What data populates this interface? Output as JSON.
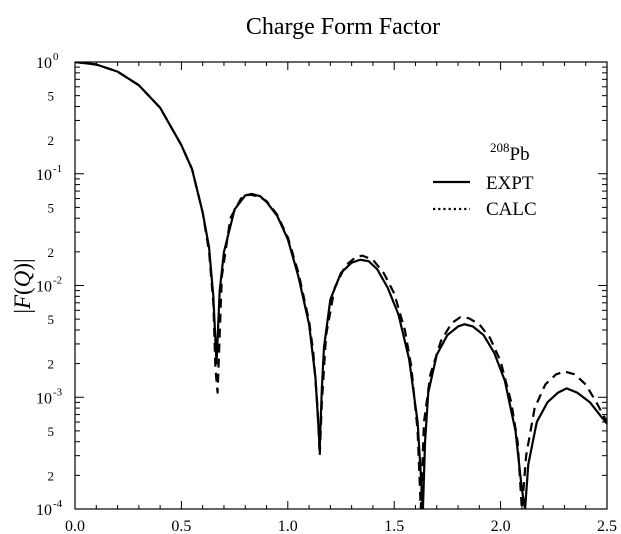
{
  "chart_data": {
    "type": "line",
    "title": "Charge Form Factor",
    "xlabel": "",
    "ylabel": "|F(Q)|",
    "x_scale": "linear",
    "y_scale": "log",
    "xlim": [
      0.0,
      2.5
    ],
    "ylim": [
      0.0001,
      1
    ],
    "grid": false,
    "legend": {
      "placement": "top-right",
      "heading_mass": "208",
      "heading_element": "Pb"
    },
    "x_ticks": [
      {
        "value": 0.0,
        "label": "0.0"
      },
      {
        "value": 0.5,
        "label": "0.5"
      },
      {
        "value": 1.0,
        "label": "1.0"
      },
      {
        "value": 1.5,
        "label": "1.5"
      },
      {
        "value": 2.0,
        "label": "2.0"
      },
      {
        "value": 2.5,
        "label": "2.5"
      }
    ],
    "y_major_ticks": [
      {
        "value": 1,
        "mantissa": "10",
        "exponent": "0"
      },
      {
        "value": 0.1,
        "mantissa": "10",
        "exponent": "-1"
      },
      {
        "value": 0.01,
        "mantissa": "10",
        "exponent": "-2"
      },
      {
        "value": 0.001,
        "mantissa": "10",
        "exponent": "-3"
      },
      {
        "value": 0.0001,
        "mantissa": "10",
        "exponent": "-4"
      }
    ],
    "y_minor_labels": [
      {
        "value": 0.5,
        "label": "5"
      },
      {
        "value": 0.2,
        "label": "2"
      },
      {
        "value": 0.05,
        "label": "5"
      },
      {
        "value": 0.02,
        "label": "2"
      },
      {
        "value": 0.005,
        "label": "5"
      },
      {
        "value": 0.002,
        "label": "2"
      },
      {
        "value": 0.0005,
        "label": "5"
      },
      {
        "value": 0.0002,
        "label": "2"
      }
    ],
    "series": [
      {
        "name": "EXPT",
        "style": "solid",
        "color": "#000000",
        "x": [
          0.0,
          0.1,
          0.2,
          0.3,
          0.4,
          0.5,
          0.55,
          0.6,
          0.63,
          0.65,
          0.665,
          0.68,
          0.7,
          0.75,
          0.8,
          0.83,
          0.87,
          0.9,
          0.95,
          1.0,
          1.05,
          1.1,
          1.13,
          1.15,
          1.16,
          1.17,
          1.2,
          1.25,
          1.3,
          1.34,
          1.38,
          1.42,
          1.47,
          1.52,
          1.57,
          1.61,
          1.635,
          1.645,
          1.66,
          1.7,
          1.75,
          1.8,
          1.83,
          1.87,
          1.92,
          1.97,
          2.02,
          2.07,
          2.1,
          2.115,
          2.13,
          2.17,
          2.22,
          2.27,
          2.31,
          2.36,
          2.42,
          2.47,
          2.5
        ],
        "y": [
          1.0,
          0.95,
          0.82,
          0.62,
          0.39,
          0.18,
          0.11,
          0.045,
          0.022,
          0.008,
          0.002,
          0.009,
          0.02,
          0.048,
          0.064,
          0.066,
          0.063,
          0.056,
          0.042,
          0.026,
          0.012,
          0.0045,
          0.0015,
          0.00035,
          0.0012,
          0.0028,
          0.0075,
          0.013,
          0.016,
          0.017,
          0.0165,
          0.014,
          0.0095,
          0.0055,
          0.0022,
          0.0006,
          0.0001,
          0.0004,
          0.0011,
          0.0024,
          0.0036,
          0.0043,
          0.0045,
          0.0043,
          0.0036,
          0.0025,
          0.0014,
          0.0005,
          0.00015,
          0.0001,
          0.00025,
          0.0006,
          0.0009,
          0.0011,
          0.0012,
          0.0011,
          0.0009,
          0.00068,
          0.00058
        ]
      },
      {
        "name": "CALC",
        "style": "dashed",
        "color": "#000000",
        "x": [
          0.0,
          0.1,
          0.2,
          0.3,
          0.4,
          0.5,
          0.55,
          0.6,
          0.63,
          0.65,
          0.66,
          0.67,
          0.69,
          0.73,
          0.78,
          0.82,
          0.86,
          0.9,
          0.95,
          1.0,
          1.05,
          1.1,
          1.12,
          1.14,
          1.15,
          1.16,
          1.18,
          1.22,
          1.27,
          1.32,
          1.35,
          1.4,
          1.45,
          1.5,
          1.55,
          1.58,
          1.61,
          1.625,
          1.64,
          1.67,
          1.72,
          1.77,
          1.81,
          1.85,
          1.9,
          1.95,
          2.0,
          2.05,
          2.08,
          2.1,
          2.12,
          2.16,
          2.21,
          2.26,
          2.3,
          2.35,
          2.4,
          2.45,
          2.5
        ],
        "y": [
          1.0,
          0.95,
          0.82,
          0.62,
          0.39,
          0.18,
          0.11,
          0.045,
          0.02,
          0.007,
          0.0018,
          0.0011,
          0.012,
          0.04,
          0.06,
          0.065,
          0.063,
          0.057,
          0.043,
          0.027,
          0.013,
          0.0048,
          0.0025,
          0.0008,
          0.0003,
          0.0009,
          0.0036,
          0.0095,
          0.015,
          0.018,
          0.0185,
          0.017,
          0.013,
          0.0085,
          0.004,
          0.0019,
          0.0005,
          0.0001,
          0.0006,
          0.0016,
          0.0032,
          0.0046,
          0.0052,
          0.0051,
          0.0045,
          0.0034,
          0.0021,
          0.0009,
          0.0004,
          0.0001,
          0.0003,
          0.0008,
          0.0013,
          0.0016,
          0.0017,
          0.0016,
          0.0013,
          0.0009,
          0.0006
        ]
      }
    ]
  }
}
